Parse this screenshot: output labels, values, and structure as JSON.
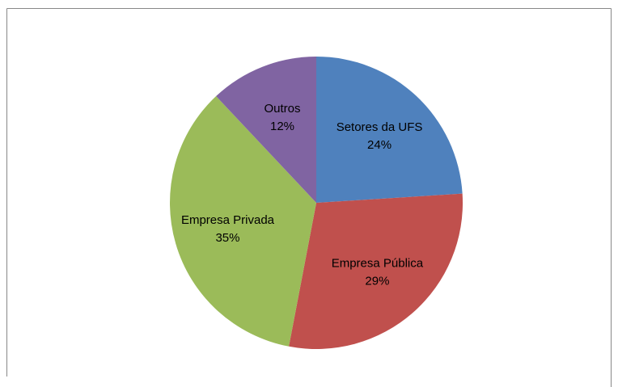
{
  "chart_data": {
    "type": "pie",
    "categories": [
      "Setores da UFS",
      "Empresa Pública",
      "Empresa Privada",
      "Outros"
    ],
    "values": [
      24,
      29,
      35,
      12
    ],
    "value_labels": [
      "24%",
      "29%",
      "35%",
      "12%"
    ],
    "colors": [
      "#4f81bd",
      "#c0504d",
      "#9bbb59",
      "#8064a2"
    ]
  }
}
